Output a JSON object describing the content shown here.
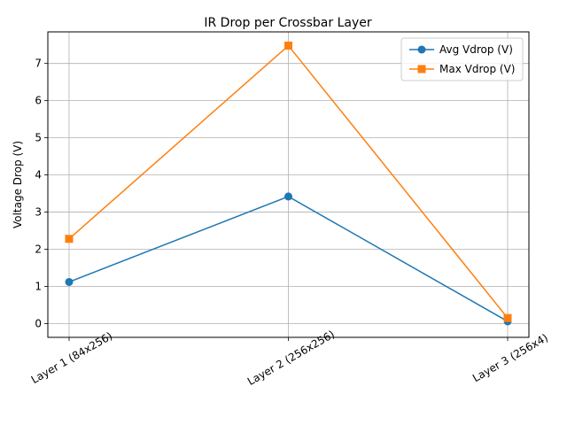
{
  "chart_data": {
    "type": "line",
    "title": "IR Drop per Crossbar Layer",
    "xlabel": "",
    "ylabel": "Voltage Drop (V)",
    "categories": [
      "Layer 1 (84x256)",
      "Layer 2 (256x256)",
      "Layer 3 (256x4)"
    ],
    "ylim": [
      -0.37,
      7.85
    ],
    "yticks": [
      0,
      1,
      2,
      3,
      4,
      5,
      6,
      7
    ],
    "grid": true,
    "legend_position": "top-right",
    "series": [
      {
        "name": "Avg Vdrop (V)",
        "values": [
          1.12,
          3.42,
          0.06
        ],
        "color": "#1f77b4",
        "marker": "circle"
      },
      {
        "name": "Max Vdrop (V)",
        "values": [
          2.28,
          7.48,
          0.15
        ],
        "color": "#ff7f0e",
        "marker": "square"
      }
    ]
  }
}
